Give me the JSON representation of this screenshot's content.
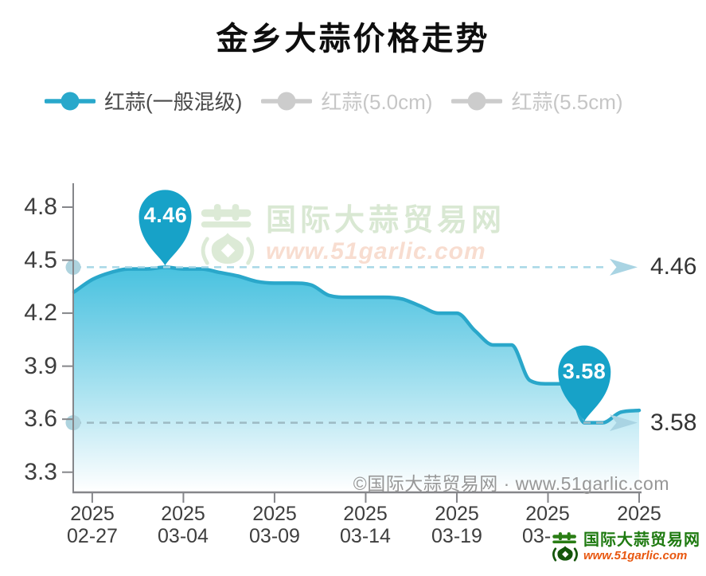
{
  "page_title": "金乡大蒜价格走势",
  "legend": {
    "items": [
      {
        "label": "红蒜(一般混级)",
        "marker_color": "#29a8cb",
        "label_color": "#4a4a4a",
        "active": true
      },
      {
        "label": "红蒜(5.0cm)",
        "marker_color": "#cccccc",
        "label_color": "#c6c6c6",
        "active": false
      },
      {
        "label": "红蒜(5.5cm)",
        "marker_color": "#cccccc",
        "label_color": "#c6c6c6",
        "active": false
      }
    ]
  },
  "chart_data": {
    "type": "area",
    "title": "金乡大蒜价格走势",
    "x": [
      "2025-02-26",
      "2025-02-27",
      "2025-02-28",
      "2025-03-01",
      "2025-03-02",
      "2025-03-03",
      "2025-03-04",
      "2025-03-05",
      "2025-03-06",
      "2025-03-07",
      "2025-03-08",
      "2025-03-09",
      "2025-03-10",
      "2025-03-11",
      "2025-03-12",
      "2025-03-13",
      "2025-03-14",
      "2025-03-15",
      "2025-03-16",
      "2025-03-17",
      "2025-03-18",
      "2025-03-19",
      "2025-03-20",
      "2025-03-21",
      "2025-03-22",
      "2025-03-23",
      "2025-03-24",
      "2025-03-25",
      "2025-03-26",
      "2025-03-27",
      "2025-03-28",
      "2025-03-29"
    ],
    "series": [
      {
        "name": "红蒜(一般混级)",
        "color": "#2aa7ca",
        "values": [
          4.32,
          4.39,
          4.43,
          4.45,
          4.45,
          4.46,
          4.45,
          4.45,
          4.43,
          4.41,
          4.38,
          4.37,
          4.37,
          4.36,
          4.3,
          4.29,
          4.29,
          4.29,
          4.28,
          4.24,
          4.2,
          4.2,
          4.1,
          4.02,
          4.02,
          3.82,
          3.8,
          3.8,
          3.58,
          3.58,
          3.64,
          3.65
        ]
      }
    ],
    "y_ticks": [
      "4.8",
      "4.5",
      "4.2",
      "3.9",
      "3.6",
      "3.3"
    ],
    "ylim": [
      3.3,
      4.9
    ],
    "x_tick_indices": [
      1,
      6,
      11,
      16,
      21,
      26,
      31
    ],
    "x_tick_labels": [
      {
        "year": "2025",
        "date": "02-27"
      },
      {
        "year": "2025",
        "date": "03-04"
      },
      {
        "year": "2025",
        "date": "03-09"
      },
      {
        "year": "2025",
        "date": "03-14"
      },
      {
        "year": "2025",
        "date": "03-19"
      },
      {
        "year": "2025",
        "date": "03-24"
      },
      {
        "year": "2025",
        "date": "03-29"
      }
    ],
    "grid": false,
    "legend_position": "top-left",
    "annotations": [
      {
        "type": "peak",
        "label": "4.46",
        "value": 4.46,
        "date": "2025-03-03",
        "x_index": 5
      },
      {
        "type": "low",
        "label": "3.58",
        "value": 3.58,
        "date": "2025-03-26",
        "x_index": 28
      }
    ]
  },
  "watermark": {
    "brand": "国际大蒜贸易网",
    "url": "www.51garlic.com"
  },
  "copyright": "©国际大蒜贸易网 · www.51garlic.com",
  "footer_logo": {
    "brand": "国际大蒜贸易网",
    "url": "www.51garlic.com"
  },
  "colors": {
    "series_line": "#2aa7ca",
    "area_top": "#45c1df",
    "area_mid1": "#76d0e7",
    "area_mid2": "#aee4f1",
    "area_mid3": "#ddf3f9",
    "area_bottom": "#ffffff",
    "balloon": "#17a2c8",
    "refline_high": "#a7d7e6",
    "refline_low": "#9dbac4",
    "arrow": "#a9d4e3",
    "axis": "#85868a",
    "axis_dot": "#aed3de",
    "tick_label": "#3e3e3e",
    "ref_label": "#343434"
  }
}
